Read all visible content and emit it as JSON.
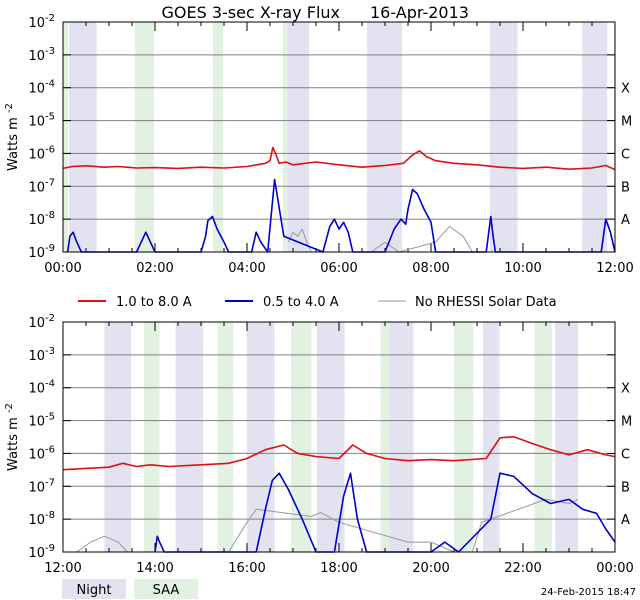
{
  "title": "GOES 3-sec X-ray Flux",
  "date": "16-Apr-2013",
  "ylabel_main": "Watts m",
  "ylabel_sup": "-2",
  "y_exponents": [
    "-2",
    "-3",
    "-4",
    "-5",
    "-6",
    "-7",
    "-8",
    "-9"
  ],
  "class_labels": [
    "X",
    "M",
    "C",
    "B",
    "A"
  ],
  "legend": [
    {
      "label": "1.0 to 8.0 A",
      "color": "#dd1111"
    },
    {
      "label": "0.5 to 4.0 A",
      "color": "#0000cc"
    },
    {
      "label": "No RHESSI Solar Data",
      "color": "#999999"
    }
  ],
  "bottom_legend": {
    "night": "Night",
    "saa": "SAA",
    "night_color": "#e2e2f0",
    "saa_color": "#e3f1e3"
  },
  "footer_timestamp": "24-Feb-2015 18:47",
  "colors": {
    "grid": "#808080",
    "long": "#dd1111",
    "short": "#0000cc",
    "nodata": "#999999"
  },
  "chart_data": [
    {
      "type": "line",
      "panel": "top",
      "x_unit": "hours",
      "xlim": [
        0,
        12
      ],
      "ylim": [
        1e-09,
        0.01
      ],
      "yscale": "log",
      "x_ticks": [
        0,
        2,
        4,
        6,
        8,
        10,
        12
      ],
      "x_tick_labels": [
        "00:00",
        "02:00",
        "04:00",
        "06:00",
        "08:00",
        "10:00",
        "12:00"
      ],
      "night_intervals": [
        [
          0.13,
          0.73
        ],
        [
          4.89,
          5.35
        ],
        [
          6.61,
          7.37
        ],
        [
          9.28,
          9.88
        ],
        [
          11.29,
          11.83
        ]
      ],
      "saa_intervals": [
        [
          0.0,
          0.11
        ],
        [
          1.56,
          1.98
        ],
        [
          3.26,
          3.48
        ],
        [
          4.78,
          4.89
        ]
      ],
      "series": [
        {
          "name": "1.0 to 8.0 A",
          "color": "#dd1111",
          "x": [
            0,
            0.2,
            0.5,
            0.9,
            1.2,
            1.6,
            2.0,
            2.5,
            3.0,
            3.5,
            4.0,
            4.4,
            4.5,
            4.56,
            4.62,
            4.7,
            4.85,
            5.0,
            5.5,
            6.0,
            6.5,
            7.0,
            7.4,
            7.6,
            7.75,
            7.9,
            8.1,
            8.5,
            9.0,
            9.5,
            10.0,
            10.5,
            11.0,
            11.5,
            11.8,
            12.0
          ],
          "y": [
            3.5e-07,
            4e-07,
            4.2e-07,
            3.8e-07,
            4e-07,
            3.6e-07,
            3.7e-07,
            3.5e-07,
            3.8e-07,
            3.6e-07,
            4e-07,
            5e-07,
            6e-07,
            1.5e-06,
            1e-06,
            5e-07,
            5.5e-07,
            4.5e-07,
            5.5e-07,
            4.5e-07,
            3.8e-07,
            4.3e-07,
            5e-07,
            9e-07,
            1.2e-06,
            8e-07,
            6e-07,
            5e-07,
            4.5e-07,
            3.8e-07,
            3.5e-07,
            3.8e-07,
            3.3e-07,
            3.6e-07,
            4.3e-07,
            3.2e-07
          ]
        },
        {
          "name": "0.5 to 4.0 A",
          "color": "#0000cc",
          "x": [
            0.1,
            0.15,
            0.22,
            0.3,
            0.4,
            1.6,
            1.8,
            1.9,
            2.0,
            3.0,
            3.1,
            3.15,
            3.25,
            3.35,
            3.5,
            3.6,
            4.1,
            4.2,
            4.3,
            4.45,
            4.55,
            4.6,
            4.65,
            4.72,
            4.8,
            5.65,
            5.8,
            5.9,
            6.0,
            6.1,
            6.2,
            6.3,
            7.0,
            7.2,
            7.35,
            7.45,
            7.5,
            7.6,
            7.7,
            7.85,
            8.0,
            8.1,
            9.2,
            9.3,
            9.35,
            9.4,
            11.7,
            11.8,
            11.9,
            12.0
          ],
          "y": [
            1e-09,
            3e-09,
            4e-09,
            2e-09,
            1e-09,
            1e-09,
            4e-09,
            2e-09,
            1e-09,
            1e-09,
            3e-09,
            9e-09,
            1.2e-08,
            5e-09,
            2e-09,
            1e-09,
            1e-09,
            4e-09,
            2e-09,
            1e-09,
            3e-08,
            1.6e-07,
            6e-08,
            1.5e-08,
            3e-09,
            1e-09,
            6e-09,
            1e-08,
            5e-09,
            8e-09,
            4e-09,
            1e-09,
            1e-09,
            5e-09,
            1e-08,
            7e-09,
            2e-08,
            8e-08,
            6e-08,
            2e-08,
            8e-09,
            1e-09,
            1e-09,
            1.2e-08,
            3e-09,
            1e-09,
            1e-09,
            1e-08,
            4e-09,
            1e-09
          ]
        },
        {
          "name": "No RHESSI Solar Data",
          "color": "#999999",
          "x": [
            4.9,
            5.0,
            5.1,
            5.2,
            5.3,
            5.4,
            6.7,
            7.0,
            7.3,
            8.1,
            8.4,
            8.7,
            8.9
          ],
          "y": [
            2e-09,
            4e-09,
            3e-09,
            5e-09,
            2e-09,
            1e-09,
            1e-09,
            2e-09,
            1e-09,
            2e-09,
            6e-09,
            3e-09,
            1e-09
          ]
        }
      ]
    },
    {
      "type": "line",
      "panel": "bottom",
      "x_unit": "hours",
      "xlim": [
        12,
        24
      ],
      "ylim": [
        1e-09,
        0.01
      ],
      "yscale": "log",
      "x_ticks": [
        12,
        14,
        16,
        18,
        20,
        22,
        24
      ],
      "x_tick_labels": [
        "12:00",
        "14:00",
        "16:00",
        "18:00",
        "20:00",
        "22:00",
        "00:00"
      ],
      "night_intervals": [
        [
          12.9,
          13.48
        ],
        [
          14.45,
          15.05
        ],
        [
          16.0,
          16.6
        ],
        [
          17.52,
          18.12
        ],
        [
          19.1,
          19.62
        ],
        [
          21.13,
          21.49
        ],
        [
          22.7,
          23.2
        ]
      ],
      "saa_intervals": [
        [
          13.76,
          14.1
        ],
        [
          15.36,
          15.7
        ],
        [
          16.96,
          17.4
        ],
        [
          18.9,
          19.1
        ],
        [
          20.5,
          20.92
        ],
        [
          22.25,
          22.63
        ]
      ],
      "series": [
        {
          "name": "1.0 to 8.0 A",
          "color": "#dd1111",
          "x": [
            12.0,
            12.5,
            13.0,
            13.3,
            13.6,
            13.9,
            14.3,
            15.0,
            15.6,
            16.0,
            16.4,
            16.8,
            17.1,
            17.5,
            18.0,
            18.3,
            18.6,
            19.0,
            19.5,
            20.0,
            20.5,
            21.2,
            21.5,
            21.8,
            22.2,
            22.6,
            23.0,
            23.4,
            23.8,
            24.0
          ],
          "y": [
            3.2e-07,
            3.5e-07,
            3.8e-07,
            5e-07,
            4e-07,
            4.5e-07,
            4e-07,
            4.5e-07,
            5e-07,
            7e-07,
            1.3e-06,
            1.8e-06,
            1e-06,
            8e-07,
            7e-07,
            1.8e-06,
            1e-06,
            7e-07,
            6e-07,
            6.5e-07,
            6e-07,
            7e-07,
            3e-06,
            3.2e-06,
            2e-06,
            1.3e-06,
            9e-07,
            1.3e-06,
            9e-07,
            8e-07
          ]
        },
        {
          "name": "0.5 to 4.0 A",
          "color": "#0000cc",
          "x": [
            14.0,
            14.05,
            14.1,
            14.2,
            16.2,
            16.4,
            16.55,
            16.7,
            16.9,
            17.2,
            17.5,
            17.9,
            18.1,
            18.25,
            18.4,
            18.6,
            18.9,
            19.2,
            20.0,
            20.3,
            20.6,
            21.3,
            21.5,
            21.8,
            22.2,
            22.6,
            23.0,
            23.3,
            23.6,
            23.8,
            24.0
          ],
          "y": [
            1e-09,
            3e-09,
            2e-09,
            1e-09,
            1e-09,
            2e-08,
            1.5e-07,
            2.5e-07,
            8e-08,
            1e-08,
            1e-09,
            1e-09,
            5e-08,
            2.5e-07,
            1e-08,
            1e-09,
            1e-09,
            1e-09,
            1e-09,
            2e-09,
            1e-09,
            1e-08,
            2.5e-07,
            2e-07,
            6e-08,
            3e-08,
            4e-08,
            2e-08,
            1.5e-08,
            5e-09,
            2e-09
          ]
        },
        {
          "name": "No RHESSI Solar Data",
          "color": "#999999",
          "x": [
            12.0,
            12.3,
            12.6,
            12.9,
            13.2,
            13.4,
            13.6,
            15.6,
            16.0,
            16.2,
            17.4,
            17.6,
            18.0,
            19.5,
            20.0,
            20.5,
            20.9,
            21.1,
            22.5,
            23.0,
            23.2
          ],
          "y": [
            1e-09,
            1e-09,
            2e-09,
            3e-09,
            2e-09,
            1e-09,
            1e-09,
            1e-09,
            8e-09,
            2e-08,
            1.2e-08,
            1.6e-08,
            8e-09,
            2e-09,
            2e-09,
            1e-09,
            1e-09,
            8e-09,
            4e-08,
            3e-08,
            4e-08
          ]
        }
      ]
    }
  ]
}
